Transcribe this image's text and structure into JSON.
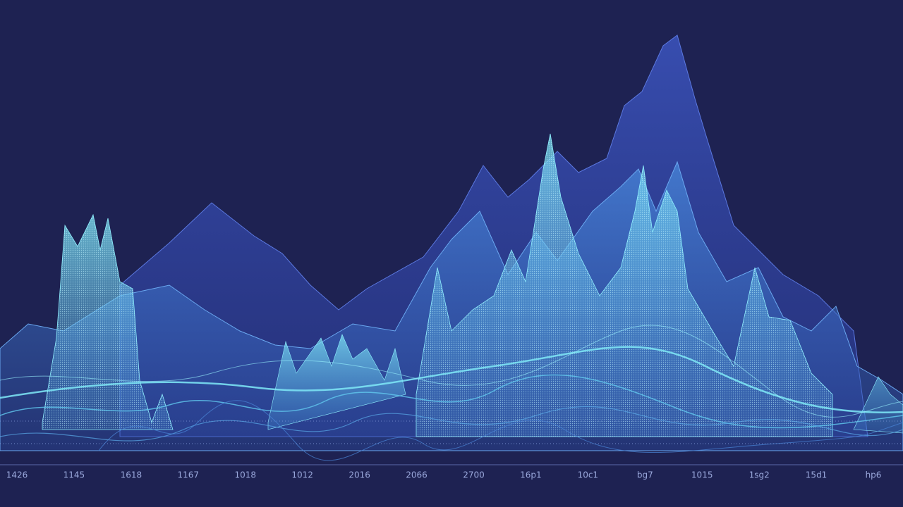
{
  "axis_labels": [
    "1426",
    "1145",
    "1618",
    "1167",
    "1018",
    "1012",
    "2016",
    "2066",
    "2700",
    "16p1",
    "10c1",
    "bg7",
    "1015",
    "1sg2",
    "15d1",
    "hp6"
  ]
}
